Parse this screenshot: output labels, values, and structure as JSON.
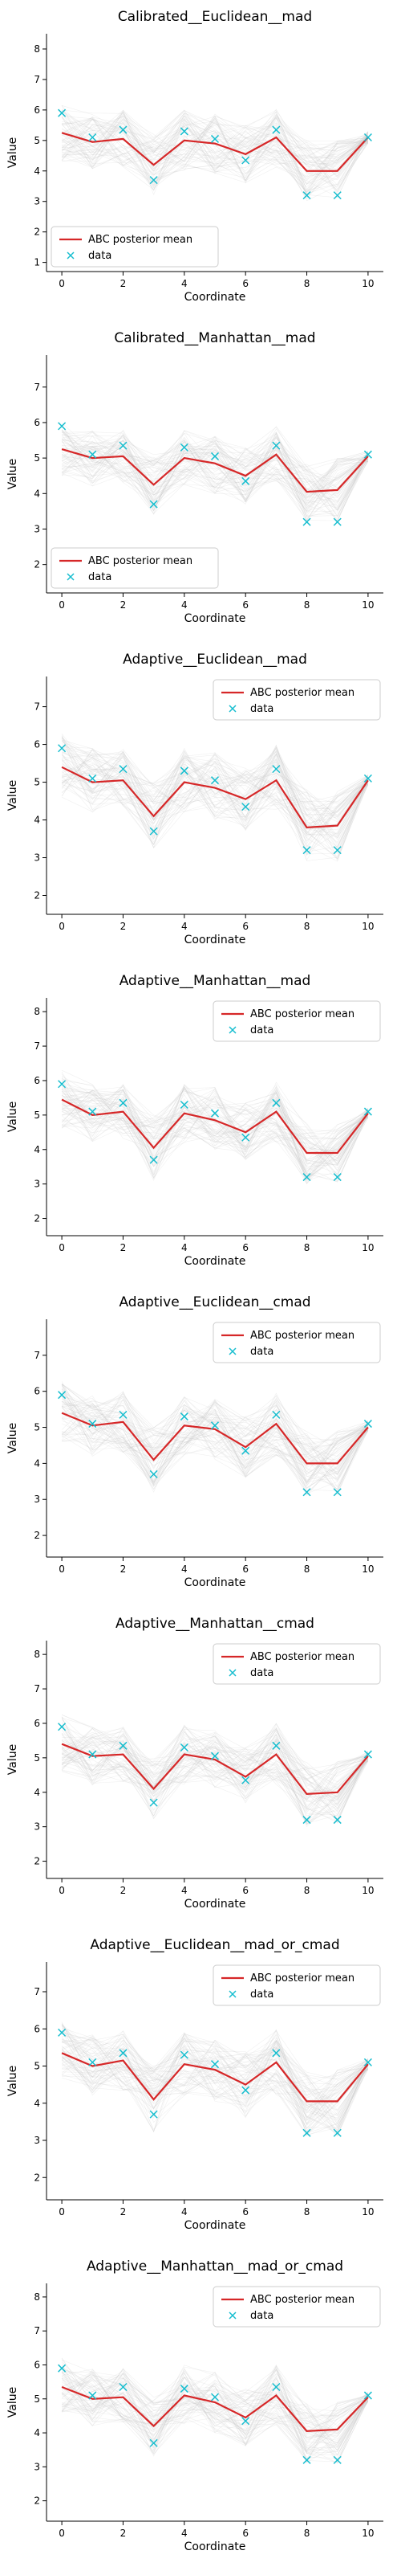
{
  "chart_data": [
    {
      "type": "line",
      "title": "Calibrated__Euclidean__mad",
      "xlabel": "Coordinate",
      "ylabel": "Value",
      "xlim": [
        -0.5,
        10.5
      ],
      "ylim": [
        0.7,
        8.5
      ],
      "x_ticks": [
        0,
        2,
        4,
        6,
        8,
        10
      ],
      "y_ticks": [
        1,
        2,
        3,
        4,
        5,
        6,
        7,
        8
      ],
      "x": [
        0,
        1,
        2,
        3,
        4,
        5,
        6,
        7,
        8,
        9,
        10
      ],
      "legend_position": "lower-left",
      "series": [
        {
          "name": "ABC posterior mean",
          "style": "line",
          "color": "#d62728",
          "values": [
            5.25,
            4.95,
            5.05,
            4.2,
            5.0,
            4.9,
            4.55,
            5.1,
            4.0,
            4.0,
            5.1
          ]
        },
        {
          "name": "data",
          "style": "x-marker",
          "color": "#17becf",
          "values": [
            5.9,
            5.1,
            5.35,
            3.7,
            5.3,
            5.05,
            4.35,
            5.35,
            3.2,
            3.2,
            5.1
          ]
        }
      ],
      "background_band": {
        "color": "#c8c8c8",
        "lower": [
          4.3,
          4.0,
          4.1,
          3.2,
          4.0,
          3.9,
          3.6,
          4.1,
          3.0,
          3.0,
          4.9
        ],
        "upper": [
          6.2,
          5.9,
          6.0,
          5.2,
          6.0,
          5.9,
          5.5,
          6.1,
          5.0,
          5.0,
          5.3
        ]
      }
    },
    {
      "type": "line",
      "title": "Calibrated__Manhattan__mad",
      "xlabel": "Coordinate",
      "ylabel": "Value",
      "xlim": [
        -0.5,
        10.5
      ],
      "ylim": [
        1.2,
        7.9
      ],
      "x_ticks": [
        0,
        2,
        4,
        6,
        8,
        10
      ],
      "y_ticks": [
        2,
        3,
        4,
        5,
        6,
        7
      ],
      "x": [
        0,
        1,
        2,
        3,
        4,
        5,
        6,
        7,
        8,
        9,
        10
      ],
      "legend_position": "lower-left",
      "series": [
        {
          "name": "ABC posterior mean",
          "style": "line",
          "color": "#d62728",
          "values": [
            5.25,
            5.0,
            5.05,
            4.25,
            5.0,
            4.85,
            4.5,
            5.1,
            4.05,
            4.1,
            5.05
          ]
        },
        {
          "name": "data",
          "style": "x-marker",
          "color": "#17becf",
          "values": [
            5.9,
            5.1,
            5.35,
            3.7,
            5.3,
            5.05,
            4.35,
            5.35,
            3.2,
            3.2,
            5.1
          ]
        }
      ],
      "background_band": {
        "color": "#c8c8c8",
        "lower": [
          4.5,
          4.2,
          4.3,
          3.4,
          4.2,
          4.0,
          3.7,
          4.3,
          3.2,
          3.2,
          4.9
        ],
        "upper": [
          6.0,
          5.8,
          5.8,
          5.1,
          5.8,
          5.7,
          5.3,
          5.9,
          4.9,
          5.0,
          5.2
        ]
      }
    },
    {
      "type": "line",
      "title": "Adaptive__Euclidean__mad",
      "xlabel": "Coordinate",
      "ylabel": "Value",
      "xlim": [
        -0.5,
        10.5
      ],
      "ylim": [
        1.5,
        7.8
      ],
      "x_ticks": [
        0,
        2,
        4,
        6,
        8,
        10
      ],
      "y_ticks": [
        2,
        3,
        4,
        5,
        6,
        7
      ],
      "x": [
        0,
        1,
        2,
        3,
        4,
        5,
        6,
        7,
        8,
        9,
        10
      ],
      "legend_position": "upper-right",
      "series": [
        {
          "name": "ABC posterior mean",
          "style": "line",
          "color": "#d62728",
          "values": [
            5.4,
            5.0,
            5.05,
            4.1,
            5.0,
            4.85,
            4.55,
            5.05,
            3.8,
            3.85,
            5.05
          ]
        },
        {
          "name": "data",
          "style": "x-marker",
          "color": "#17becf",
          "values": [
            5.9,
            5.1,
            5.35,
            3.7,
            5.3,
            5.05,
            4.35,
            5.35,
            3.2,
            3.2,
            5.1
          ]
        }
      ],
      "background_band": {
        "color": "#c8c8c8",
        "lower": [
          4.6,
          4.2,
          4.3,
          3.2,
          4.2,
          4.0,
          3.7,
          4.2,
          2.9,
          2.9,
          4.9
        ],
        "upper": [
          6.3,
          5.9,
          5.9,
          5.0,
          5.9,
          5.8,
          5.4,
          6.0,
          4.8,
          4.8,
          5.2
        ]
      }
    },
    {
      "type": "line",
      "title": "Adaptive__Manhattan__mad",
      "xlabel": "Coordinate",
      "ylabel": "Value",
      "xlim": [
        -0.5,
        10.5
      ],
      "ylim": [
        1.5,
        8.4
      ],
      "x_ticks": [
        0,
        2,
        4,
        6,
        8,
        10
      ],
      "y_ticks": [
        2,
        3,
        4,
        5,
        6,
        7,
        8
      ],
      "x": [
        0,
        1,
        2,
        3,
        4,
        5,
        6,
        7,
        8,
        9,
        10
      ],
      "legend_position": "upper-right",
      "series": [
        {
          "name": "ABC posterior mean",
          "style": "line",
          "color": "#d62728",
          "values": [
            5.45,
            5.0,
            5.1,
            4.05,
            5.05,
            4.85,
            4.5,
            5.1,
            3.9,
            3.9,
            5.05
          ]
        },
        {
          "name": "data",
          "style": "x-marker",
          "color": "#17becf",
          "values": [
            5.9,
            5.1,
            5.35,
            3.7,
            5.3,
            5.05,
            4.35,
            5.35,
            3.2,
            3.2,
            5.1
          ]
        }
      ],
      "background_band": {
        "color": "#c8c8c8",
        "lower": [
          4.6,
          4.2,
          4.3,
          3.1,
          4.2,
          4.0,
          3.7,
          4.2,
          3.0,
          3.0,
          4.9
        ],
        "upper": [
          6.3,
          5.9,
          5.9,
          5.0,
          5.9,
          5.8,
          5.4,
          6.0,
          4.8,
          4.8,
          5.2
        ]
      }
    },
    {
      "type": "line",
      "title": "Adaptive__Euclidean__cmad",
      "xlabel": "Coordinate",
      "ylabel": "Value",
      "xlim": [
        -0.5,
        10.5
      ],
      "ylim": [
        1.4,
        8.0
      ],
      "x_ticks": [
        0,
        2,
        4,
        6,
        8,
        10
      ],
      "y_ticks": [
        2,
        3,
        4,
        5,
        6,
        7
      ],
      "x": [
        0,
        1,
        2,
        3,
        4,
        5,
        6,
        7,
        8,
        9,
        10
      ],
      "legend_position": "upper-right",
      "series": [
        {
          "name": "ABC posterior mean",
          "style": "line",
          "color": "#d62728",
          "values": [
            5.4,
            5.05,
            5.15,
            4.1,
            5.05,
            4.95,
            4.45,
            5.1,
            4.0,
            4.0,
            5.0
          ]
        },
        {
          "name": "data",
          "style": "x-marker",
          "color": "#17becf",
          "values": [
            5.9,
            5.1,
            5.35,
            3.7,
            5.3,
            5.05,
            4.35,
            5.35,
            3.2,
            3.2,
            5.1
          ]
        }
      ],
      "background_band": {
        "color": "#c8c8c8",
        "lower": [
          4.6,
          4.2,
          4.3,
          3.2,
          4.2,
          4.1,
          3.6,
          4.2,
          3.1,
          3.1,
          4.9
        ],
        "upper": [
          6.3,
          5.9,
          6.0,
          5.0,
          5.9,
          5.8,
          5.3,
          6.0,
          4.9,
          4.9,
          5.2
        ]
      }
    },
    {
      "type": "line",
      "title": "Adaptive__Manhattan__cmad",
      "xlabel": "Coordinate",
      "ylabel": "Value",
      "xlim": [
        -0.5,
        10.5
      ],
      "ylim": [
        1.5,
        8.4
      ],
      "x_ticks": [
        0,
        2,
        4,
        6,
        8,
        10
      ],
      "y_ticks": [
        2,
        3,
        4,
        5,
        6,
        7,
        8
      ],
      "x": [
        0,
        1,
        2,
        3,
        4,
        5,
        6,
        7,
        8,
        9,
        10
      ],
      "legend_position": "upper-right",
      "series": [
        {
          "name": "ABC posterior mean",
          "style": "line",
          "color": "#d62728",
          "values": [
            5.4,
            5.05,
            5.1,
            4.1,
            5.1,
            4.95,
            4.45,
            5.1,
            3.95,
            4.0,
            5.05
          ]
        },
        {
          "name": "data",
          "style": "x-marker",
          "color": "#17becf",
          "values": [
            5.9,
            5.1,
            5.35,
            3.7,
            5.3,
            5.05,
            4.35,
            5.35,
            3.2,
            3.2,
            5.1
          ]
        }
      ],
      "background_band": {
        "color": "#c8c8c8",
        "lower": [
          4.6,
          4.2,
          4.3,
          3.2,
          4.2,
          4.1,
          3.6,
          4.2,
          3.0,
          3.1,
          4.9
        ],
        "upper": [
          6.3,
          5.9,
          5.9,
          5.0,
          6.0,
          5.8,
          5.3,
          6.0,
          4.9,
          4.9,
          5.2
        ]
      }
    },
    {
      "type": "line",
      "title": "Adaptive__Euclidean__mad_or_cmad",
      "xlabel": "Coordinate",
      "ylabel": "Value",
      "xlim": [
        -0.5,
        10.5
      ],
      "ylim": [
        1.4,
        7.8
      ],
      "x_ticks": [
        0,
        2,
        4,
        6,
        8,
        10
      ],
      "y_ticks": [
        2,
        3,
        4,
        5,
        6,
        7
      ],
      "x": [
        0,
        1,
        2,
        3,
        4,
        5,
        6,
        7,
        8,
        9,
        10
      ],
      "legend_position": "upper-right",
      "series": [
        {
          "name": "ABC posterior mean",
          "style": "line",
          "color": "#d62728",
          "values": [
            5.35,
            5.0,
            5.15,
            4.1,
            5.05,
            4.9,
            4.5,
            5.1,
            4.05,
            4.05,
            5.05
          ]
        },
        {
          "name": "data",
          "style": "x-marker",
          "color": "#17becf",
          "values": [
            5.9,
            5.1,
            5.35,
            3.7,
            5.3,
            5.05,
            4.35,
            5.35,
            3.2,
            3.2,
            5.1
          ]
        }
      ],
      "background_band": {
        "color": "#c8c8c8",
        "lower": [
          4.6,
          4.2,
          4.3,
          3.2,
          4.2,
          4.0,
          3.6,
          4.2,
          3.1,
          3.1,
          4.9
        ],
        "upper": [
          6.2,
          5.9,
          6.0,
          5.0,
          5.9,
          5.8,
          5.4,
          6.0,
          4.9,
          4.9,
          5.2
        ]
      }
    },
    {
      "type": "line",
      "title": "Adaptive__Manhattan__mad_or_cmad",
      "xlabel": "Coordinate",
      "ylabel": "Value",
      "xlim": [
        -0.5,
        10.5
      ],
      "ylim": [
        1.4,
        8.4
      ],
      "x_ticks": [
        0,
        2,
        4,
        6,
        8,
        10
      ],
      "y_ticks": [
        2,
        3,
        4,
        5,
        6,
        7,
        8
      ],
      "x": [
        0,
        1,
        2,
        3,
        4,
        5,
        6,
        7,
        8,
        9,
        10
      ],
      "legend_position": "upper-right",
      "series": [
        {
          "name": "ABC posterior mean",
          "style": "line",
          "color": "#d62728",
          "values": [
            5.35,
            5.0,
            5.05,
            4.2,
            5.1,
            4.9,
            4.45,
            5.1,
            4.05,
            4.1,
            5.05
          ]
        },
        {
          "name": "data",
          "style": "x-marker",
          "color": "#17becf",
          "values": [
            5.9,
            5.1,
            5.35,
            3.7,
            5.3,
            5.05,
            4.35,
            5.35,
            3.2,
            3.2,
            5.1
          ]
        }
      ],
      "background_band": {
        "color": "#c8c8c8",
        "lower": [
          4.6,
          4.2,
          4.3,
          3.3,
          4.2,
          4.0,
          3.6,
          4.2,
          3.1,
          3.1,
          4.9
        ],
        "upper": [
          6.2,
          5.9,
          5.9,
          5.1,
          6.0,
          5.8,
          5.3,
          6.0,
          4.9,
          4.9,
          5.2
        ]
      }
    }
  ]
}
